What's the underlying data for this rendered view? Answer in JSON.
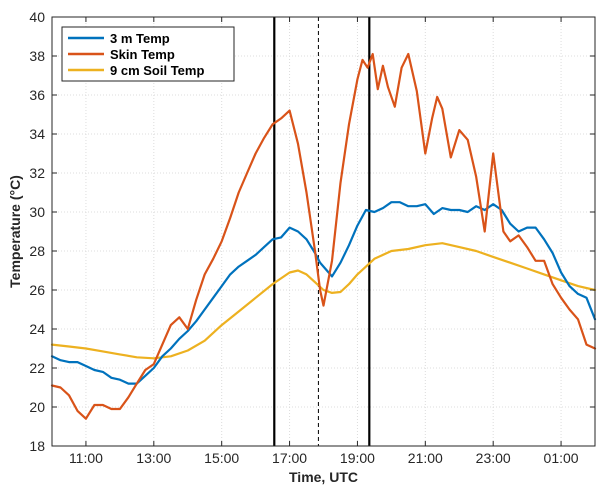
{
  "chart_data": {
    "type": "line",
    "xlabel": "Time, UTC",
    "ylabel": "Temperature (°C)",
    "xlim": [
      10.0,
      26.0
    ],
    "ylim": [
      18,
      40
    ],
    "x_ticks": [
      {
        "value": 11,
        "label": "11:00"
      },
      {
        "value": 13,
        "label": "13:00"
      },
      {
        "value": 15,
        "label": "15:00"
      },
      {
        "value": 17,
        "label": "17:00"
      },
      {
        "value": 19,
        "label": "19:00"
      },
      {
        "value": 21,
        "label": "21:00"
      },
      {
        "value": 23,
        "label": "23:00"
      },
      {
        "value": 25,
        "label": "01:00"
      }
    ],
    "y_ticks": [
      18,
      20,
      22,
      24,
      26,
      28,
      30,
      32,
      34,
      36,
      38,
      40
    ],
    "grid": true,
    "legend_position": "top-left",
    "vertical_lines": [
      {
        "x": 16.55,
        "style": "solid"
      },
      {
        "x": 17.85,
        "style": "dashed"
      },
      {
        "x": 19.35,
        "style": "solid"
      }
    ],
    "series": [
      {
        "name": "3 m Temp",
        "color": "#0072BD",
        "x": [
          10.0,
          10.25,
          10.5,
          10.75,
          11.0,
          11.25,
          11.5,
          11.75,
          12.0,
          12.25,
          12.5,
          12.75,
          13.0,
          13.25,
          13.5,
          13.75,
          14.0,
          14.25,
          14.5,
          14.75,
          15.0,
          15.25,
          15.5,
          15.75,
          16.0,
          16.25,
          16.5,
          16.75,
          17.0,
          17.25,
          17.5,
          17.75,
          17.9,
          18.0,
          18.25,
          18.5,
          18.75,
          19.0,
          19.25,
          19.5,
          19.75,
          20.0,
          20.25,
          20.5,
          20.75,
          21.0,
          21.25,
          21.5,
          21.75,
          22.0,
          22.25,
          22.5,
          22.75,
          23.0,
          23.25,
          23.5,
          23.75,
          24.0,
          24.25,
          24.5,
          24.75,
          25.0,
          25.25,
          25.5,
          25.75,
          26.0
        ],
        "y": [
          22.6,
          22.4,
          22.3,
          22.3,
          22.1,
          21.9,
          21.8,
          21.5,
          21.4,
          21.2,
          21.2,
          21.6,
          22.0,
          22.6,
          23.0,
          23.5,
          23.9,
          24.4,
          25.0,
          25.6,
          26.2,
          26.8,
          27.2,
          27.5,
          27.8,
          28.2,
          28.6,
          28.7,
          29.2,
          29.0,
          28.6,
          27.9,
          27.4,
          27.2,
          26.7,
          27.4,
          28.3,
          29.3,
          30.1,
          30.0,
          30.2,
          30.5,
          30.5,
          30.3,
          30.3,
          30.4,
          29.9,
          30.2,
          30.1,
          30.1,
          30.0,
          30.3,
          30.1,
          30.4,
          30.1,
          29.4,
          29.0,
          29.2,
          29.2,
          28.6,
          27.9,
          26.9,
          26.2,
          25.8,
          25.6,
          24.5
        ]
      },
      {
        "name": "Skin Temp",
        "color": "#D95319",
        "x": [
          10.0,
          10.25,
          10.5,
          10.75,
          11.0,
          11.25,
          11.5,
          11.75,
          12.0,
          12.25,
          12.5,
          12.75,
          13.0,
          13.25,
          13.5,
          13.75,
          14.0,
          14.25,
          14.5,
          14.75,
          15.0,
          15.25,
          15.5,
          15.75,
          16.0,
          16.25,
          16.5,
          16.75,
          17.0,
          17.25,
          17.5,
          17.75,
          17.9,
          18.0,
          18.25,
          18.5,
          18.75,
          19.0,
          19.15,
          19.3,
          19.45,
          19.6,
          19.75,
          19.9,
          20.1,
          20.3,
          20.5,
          20.75,
          21.0,
          21.2,
          21.35,
          21.5,
          21.75,
          22.0,
          22.25,
          22.5,
          22.75,
          23.0,
          23.15,
          23.3,
          23.5,
          23.75,
          24.0,
          24.25,
          24.5,
          24.75,
          25.0,
          25.25,
          25.5,
          25.75,
          26.0
        ],
        "y": [
          21.1,
          21.0,
          20.6,
          19.8,
          19.4,
          20.1,
          20.1,
          19.9,
          19.9,
          20.5,
          21.2,
          21.9,
          22.2,
          23.2,
          24.2,
          24.6,
          24.0,
          25.5,
          26.8,
          27.6,
          28.5,
          29.7,
          31.0,
          32.0,
          33.0,
          33.8,
          34.5,
          34.8,
          35.2,
          33.5,
          31.0,
          28.0,
          26.0,
          25.2,
          27.5,
          31.5,
          34.5,
          36.8,
          37.8,
          37.4,
          38.1,
          36.3,
          37.5,
          36.4,
          35.4,
          37.4,
          38.1,
          36.2,
          33.0,
          34.8,
          35.9,
          35.3,
          32.8,
          34.2,
          33.7,
          31.8,
          29.0,
          33.0,
          31.0,
          29.0,
          28.5,
          28.8,
          28.2,
          27.5,
          27.5,
          26.3,
          25.6,
          25.0,
          24.5,
          23.2,
          23.0
        ]
      },
      {
        "name": "9 cm Soil Temp",
        "color": "#EDB120",
        "x": [
          10.0,
          10.5,
          11.0,
          11.5,
          12.0,
          12.5,
          13.0,
          13.5,
          14.0,
          14.5,
          15.0,
          15.5,
          16.0,
          16.5,
          17.0,
          17.25,
          17.5,
          17.75,
          18.0,
          18.25,
          18.5,
          18.75,
          19.0,
          19.5,
          20.0,
          20.5,
          21.0,
          21.5,
          22.0,
          22.5,
          23.0,
          23.5,
          24.0,
          24.5,
          25.0,
          25.5,
          26.0
        ],
        "y": [
          23.2,
          23.1,
          23.0,
          22.85,
          22.7,
          22.55,
          22.5,
          22.6,
          22.9,
          23.4,
          24.2,
          24.9,
          25.6,
          26.3,
          26.9,
          27.0,
          26.8,
          26.4,
          26.0,
          25.85,
          25.9,
          26.3,
          26.8,
          27.6,
          28.0,
          28.1,
          28.3,
          28.4,
          28.2,
          28.0,
          27.7,
          27.4,
          27.1,
          26.8,
          26.5,
          26.2,
          26.0
        ]
      }
    ]
  }
}
